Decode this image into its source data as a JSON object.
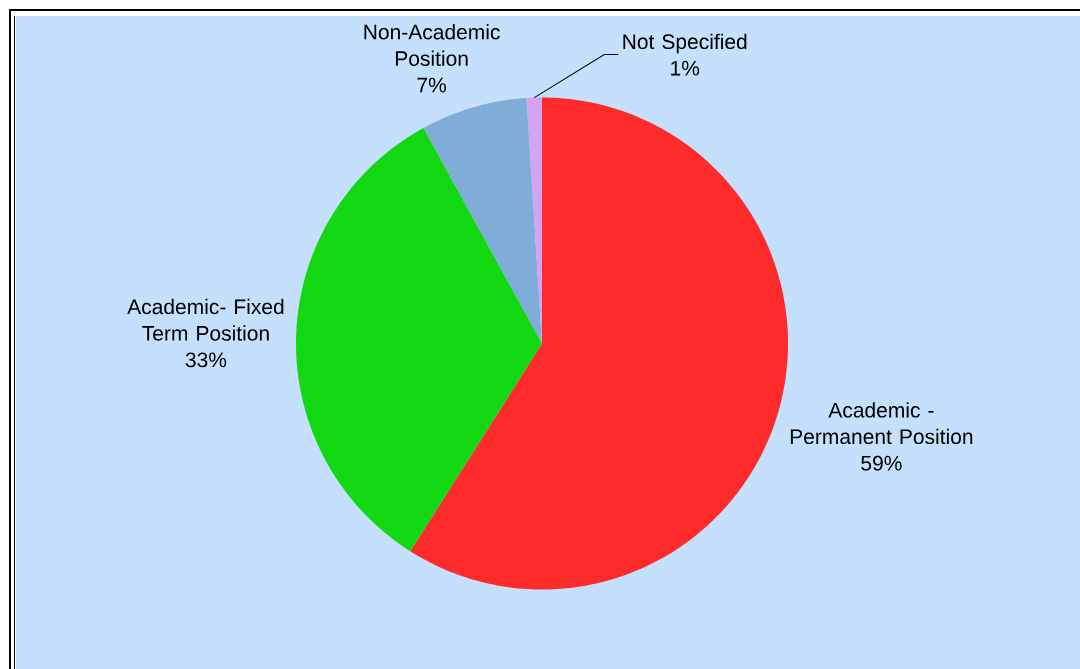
{
  "chart_data": {
    "type": "pie",
    "categories": [
      "Academic - Permanent Position",
      "Academic- Fixed Term Position",
      "Non-Academic Position",
      "Not Specified"
    ],
    "values": [
      59,
      33,
      7,
      1
    ],
    "colors": [
      "#ff2a2a",
      "#12d812",
      "#80acd8",
      "#d4a4f4"
    ],
    "value_labels": [
      "59%",
      "33%",
      "7%",
      "1%"
    ]
  }
}
